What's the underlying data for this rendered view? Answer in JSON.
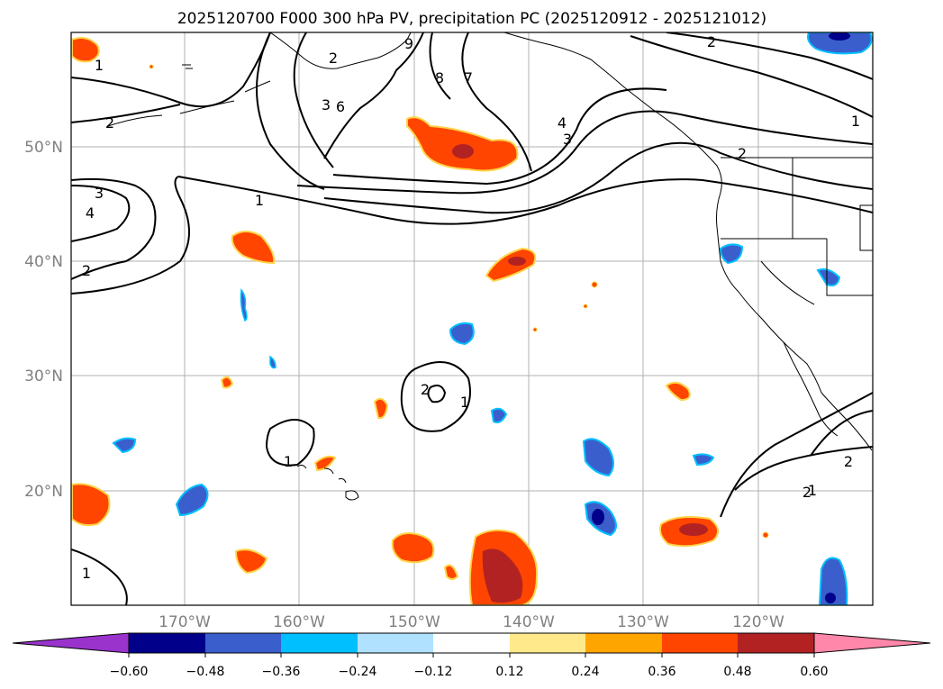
{
  "title": "2025120700 F000 300 hPa PV, precipitation PC (2025120912 - 2025121012)",
  "lat_labels": [
    "50°N",
    "40°N",
    "30°N",
    "20°N"
  ],
  "lon_labels": [
    "170°W",
    "160°W",
    "150°W",
    "140°W",
    "130°W",
    "120°W"
  ],
  "colorbar": {
    "ticks": [
      "−0.60",
      "−0.48",
      "−0.36",
      "−0.24",
      "−0.12",
      "0.12",
      "0.24",
      "0.36",
      "0.48",
      "0.60"
    ],
    "colors": [
      "#9933cc",
      "#00008b",
      "#3a5fcd",
      "#00bfff",
      "#b0e2ff",
      "#ffffff",
      "#ffe98a",
      "#ffa500",
      "#ff4500",
      "#b22222",
      "#ff88aa"
    ]
  },
  "pv_contour_labels": [
    "1",
    "1",
    "1",
    "1",
    "1",
    "1",
    "1",
    "2",
    "2",
    "2",
    "2",
    "2",
    "2",
    "2",
    "3",
    "3",
    "4",
    "4",
    "3",
    "6",
    "7",
    "8",
    "9",
    "2"
  ],
  "colors": {
    "land_outline": "#000000",
    "grid": "#b0b0b0",
    "contour": "#000000"
  }
}
